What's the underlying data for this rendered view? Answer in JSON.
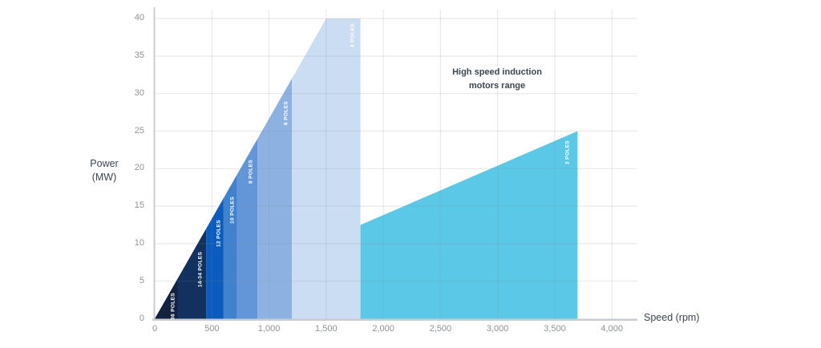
{
  "chart_data": {
    "type": "area",
    "xlabel": "Speed (rpm)",
    "ylabel": "Power (MW)",
    "annotation": "High speed induction motors range",
    "xlim": [
      0,
      4200
    ],
    "ylim": [
      0,
      40
    ],
    "x_ticks": [
      0,
      500,
      1000,
      1500,
      2000,
      2500,
      3000,
      3500,
      4000
    ],
    "x_tick_labels": [
      "0",
      "500",
      "1,000",
      "1,500",
      "2,000",
      "2,500",
      "3,000",
      "3,500",
      "4,000"
    ],
    "y_ticks": [
      0,
      5,
      10,
      15,
      20,
      25,
      30,
      35,
      40
    ],
    "envelope": {
      "diagonal_from": [
        0,
        0
      ],
      "diagonal_to": [
        1500,
        40
      ],
      "power_cap_mw": 40
    },
    "bands": [
      {
        "label": "36 POLES",
        "speed_from_rpm": 0,
        "speed_to_rpm": 200,
        "power_top_at_end_mw": 5.3,
        "color": "#13233f"
      },
      {
        "label": "14-34 POLES",
        "speed_from_rpm": 200,
        "speed_to_rpm": 450,
        "power_top_at_end_mw": 12,
        "color": "#12315e"
      },
      {
        "label": "12 POLES",
        "speed_from_rpm": 450,
        "speed_to_rpm": 600,
        "power_top_at_end_mw": 16,
        "color": "#0a5cbe"
      },
      {
        "label": "10 POLES",
        "speed_from_rpm": 600,
        "speed_to_rpm": 720,
        "power_top_at_end_mw": 19.2,
        "color": "#4182cf"
      },
      {
        "label": "8 POLES",
        "speed_from_rpm": 720,
        "speed_to_rpm": 900,
        "power_top_at_end_mw": 24,
        "color": "#6396d8"
      },
      {
        "label": "6 POLES",
        "speed_from_rpm": 900,
        "speed_to_rpm": 1200,
        "power_top_at_end_mw": 32,
        "color": "#8db2e2"
      },
      {
        "label": "4 POLES",
        "speed_from_rpm": 1200,
        "speed_to_rpm": 1800,
        "power_top_at_end_mw": 40,
        "color": "#cbddf2"
      }
    ],
    "high_speed_band": {
      "label": "2 POLES",
      "speed_from_rpm": 1800,
      "speed_to_rpm": 3700,
      "power_from_mw": 12.5,
      "power_to_mw": 25,
      "color": "#5cc8e7"
    },
    "colors": {
      "gridline": "#e9ebee",
      "axis": "#c9cdd0",
      "tick_label": "#8d9399",
      "text": "#3b4650",
      "band_label_text": "#ffffff"
    }
  }
}
